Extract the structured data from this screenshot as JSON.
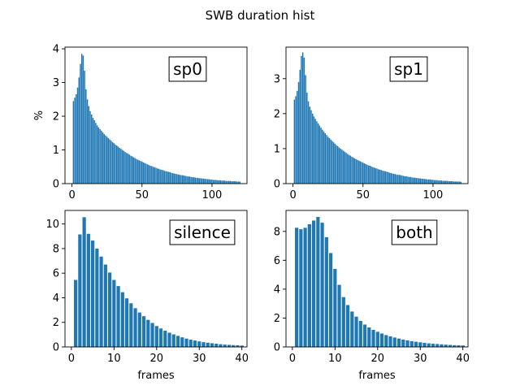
{
  "figure_title": "SWB duration hist",
  "chart_data": [
    {
      "type": "bar",
      "annotation": "sp0",
      "xlabel": "",
      "ylabel": "%",
      "xlim": [
        -5,
        125
      ],
      "ylim": [
        0,
        4.05
      ],
      "xticks": [
        0,
        50,
        100
      ],
      "yticks": [
        0,
        1,
        2,
        3,
        4
      ],
      "bar_width": 0.85,
      "color": "#1f77b4",
      "x_start": 1,
      "values": [
        2.45,
        2.55,
        2.65,
        2.85,
        3.15,
        3.55,
        3.85,
        3.8,
        3.35,
        2.8,
        2.5,
        2.3,
        2.15,
        2.05,
        1.95,
        1.88,
        1.8,
        1.73,
        1.67,
        1.62,
        1.57,
        1.52,
        1.47,
        1.43,
        1.39,
        1.35,
        1.31,
        1.27,
        1.23,
        1.2,
        1.16,
        1.13,
        1.1,
        1.06,
        1.03,
        1.0,
        0.97,
        0.94,
        0.91,
        0.89,
        0.86,
        0.83,
        0.81,
        0.78,
        0.76,
        0.73,
        0.71,
        0.69,
        0.67,
        0.65,
        0.63,
        0.61,
        0.59,
        0.57,
        0.55,
        0.53,
        0.52,
        0.5,
        0.48,
        0.47,
        0.45,
        0.44,
        0.42,
        0.41,
        0.4,
        0.38,
        0.37,
        0.36,
        0.35,
        0.34,
        0.32,
        0.31,
        0.3,
        0.29,
        0.28,
        0.27,
        0.26,
        0.25,
        0.25,
        0.24,
        0.23,
        0.22,
        0.21,
        0.21,
        0.2,
        0.19,
        0.19,
        0.18,
        0.17,
        0.17,
        0.16,
        0.16,
        0.15,
        0.15,
        0.14,
        0.14,
        0.13,
        0.13,
        0.12,
        0.12,
        0.11,
        0.11,
        0.11,
        0.1,
        0.1,
        0.1,
        0.09,
        0.09,
        0.09,
        0.08,
        0.08,
        0.08,
        0.08,
        0.07,
        0.07,
        0.07,
        0.07,
        0.06,
        0.06,
        0.06
      ]
    },
    {
      "type": "bar",
      "annotation": "sp1",
      "xlabel": "",
      "ylabel": "",
      "xlim": [
        -5,
        125
      ],
      "ylim": [
        0,
        3.9
      ],
      "xticks": [
        0,
        50,
        100
      ],
      "yticks": [
        0,
        1,
        2,
        3
      ],
      "bar_width": 0.85,
      "color": "#1f77b4",
      "x_start": 1,
      "values": [
        2.4,
        2.5,
        2.65,
        2.9,
        3.25,
        3.65,
        3.75,
        3.6,
        3.1,
        2.6,
        2.35,
        2.2,
        2.1,
        2.0,
        1.92,
        1.85,
        1.78,
        1.72,
        1.66,
        1.6,
        1.54,
        1.49,
        1.44,
        1.39,
        1.34,
        1.3,
        1.26,
        1.22,
        1.18,
        1.14,
        1.1,
        1.07,
        1.03,
        1.0,
        0.97,
        0.94,
        0.91,
        0.88,
        0.85,
        0.82,
        0.8,
        0.77,
        0.75,
        0.72,
        0.7,
        0.68,
        0.66,
        0.64,
        0.62,
        0.6,
        0.58,
        0.56,
        0.54,
        0.52,
        0.51,
        0.49,
        0.47,
        0.46,
        0.44,
        0.43,
        0.41,
        0.4,
        0.39,
        0.37,
        0.36,
        0.35,
        0.34,
        0.33,
        0.31,
        0.3,
        0.29,
        0.28,
        0.27,
        0.26,
        0.25,
        0.25,
        0.24,
        0.23,
        0.22,
        0.21,
        0.21,
        0.2,
        0.19,
        0.19,
        0.18,
        0.17,
        0.17,
        0.16,
        0.16,
        0.15,
        0.15,
        0.14,
        0.14,
        0.13,
        0.13,
        0.12,
        0.12,
        0.12,
        0.11,
        0.11,
        0.1,
        0.1,
        0.1,
        0.09,
        0.09,
        0.09,
        0.08,
        0.08,
        0.08,
        0.08,
        0.07,
        0.07,
        0.07,
        0.07,
        0.06,
        0.06,
        0.06,
        0.06,
        0.06,
        0.05
      ]
    },
    {
      "type": "bar",
      "annotation": "silence",
      "xlabel": "frames",
      "ylabel": "",
      "xlim": [
        -1.5,
        41.2
      ],
      "ylim": [
        0,
        11.1
      ],
      "xticks": [
        0,
        10,
        20,
        30,
        40
      ],
      "yticks": [
        0,
        2,
        4,
        6,
        8,
        10
      ],
      "bar_width": 0.8,
      "color": "#1f77b4",
      "x_start": 1,
      "values": [
        5.45,
        9.15,
        10.55,
        9.2,
        8.65,
        8.0,
        7.35,
        6.7,
        6.05,
        5.45,
        4.95,
        4.45,
        3.95,
        3.55,
        3.15,
        2.8,
        2.5,
        2.2,
        1.95,
        1.7,
        1.5,
        1.32,
        1.16,
        1.02,
        0.9,
        0.78,
        0.68,
        0.59,
        0.52,
        0.45,
        0.39,
        0.34,
        0.3,
        0.26,
        0.22,
        0.19,
        0.17,
        0.15,
        0.13,
        0.11
      ]
    },
    {
      "type": "bar",
      "annotation": "both",
      "xlabel": "frames",
      "ylabel": "",
      "xlim": [
        -1.5,
        41.2
      ],
      "ylim": [
        0,
        9.45
      ],
      "xticks": [
        0,
        10,
        20,
        30,
        40
      ],
      "yticks": [
        0,
        2,
        4,
        6,
        8
      ],
      "bar_width": 0.8,
      "color": "#1f77b4",
      "x_start": 1,
      "values": [
        8.25,
        8.15,
        8.25,
        8.5,
        8.75,
        9.0,
        8.6,
        7.6,
        6.5,
        5.4,
        4.3,
        3.45,
        2.9,
        2.45,
        2.1,
        1.8,
        1.55,
        1.35,
        1.18,
        1.05,
        0.93,
        0.82,
        0.73,
        0.65,
        0.58,
        0.51,
        0.45,
        0.4,
        0.36,
        0.32,
        0.28,
        0.25,
        0.22,
        0.2,
        0.18,
        0.16,
        0.14,
        0.12,
        0.11,
        0.1
      ]
    }
  ]
}
